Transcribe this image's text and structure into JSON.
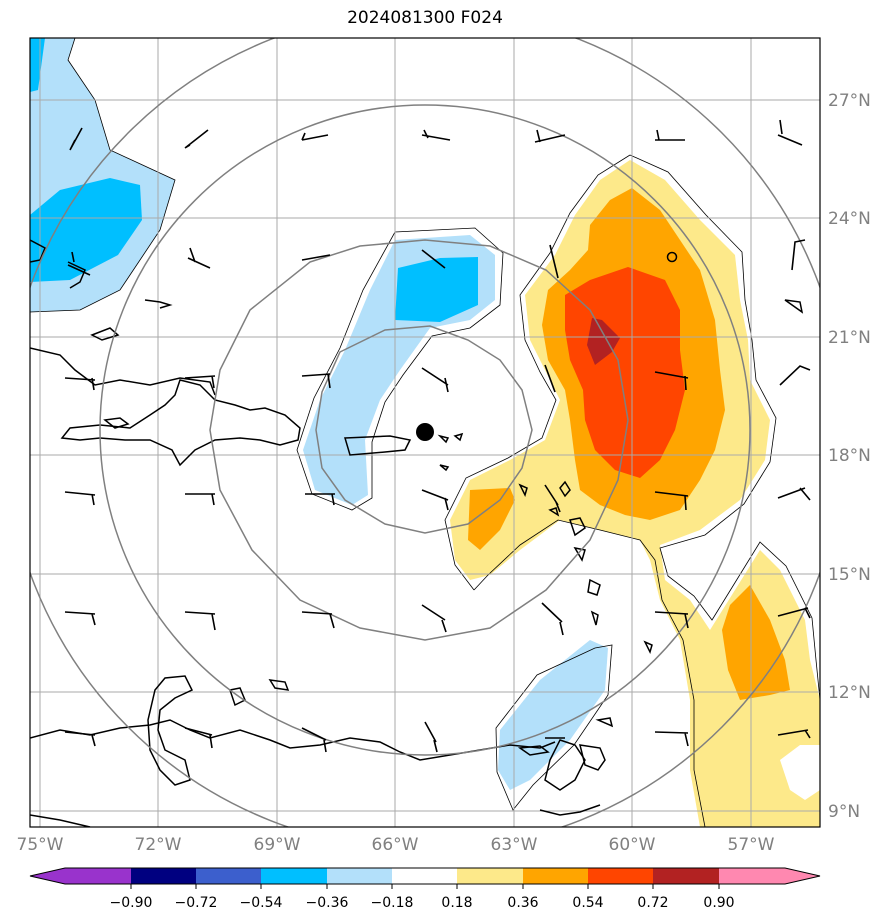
{
  "title": "2024081300 F024",
  "map": {
    "lon_labels": [
      "75°W",
      "72°W",
      "69°W",
      "66°W",
      "63°W",
      "60°W",
      "57°W"
    ],
    "lat_labels": [
      "27°N",
      "24°N",
      "21°N",
      "18°N",
      "15°N",
      "12°N",
      "9°N"
    ],
    "range_ring_center": "18.6°N 65.2°W",
    "fill_colors": {
      "light_blue": "#b3e0fa",
      "cyan": "#00bfff",
      "light_yellow": "#fde98a",
      "orange": "#ffa500",
      "red_orange": "#ff4500",
      "dark_red": "#b22222"
    }
  },
  "colorbar": {
    "ticks": [
      "−0.90",
      "−0.72",
      "−0.54",
      "−0.36",
      "−0.18",
      "0.18",
      "0.36",
      "0.54",
      "0.72",
      "0.90"
    ],
    "colors": [
      "#9933cc",
      "#000080",
      "#3c5fcd",
      "#00bfff",
      "#b3e0fa",
      "#ffffff",
      "#fde98a",
      "#ffa500",
      "#ff4500",
      "#b22222",
      "#ff88b0"
    ]
  }
}
